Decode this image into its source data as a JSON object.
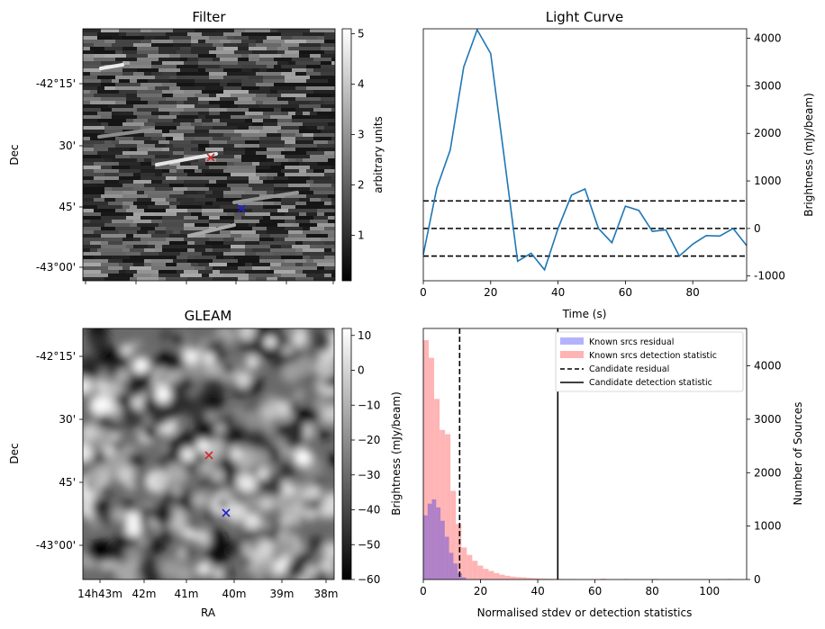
{
  "chart_data": [
    {
      "type": "heatmap",
      "title": "Filter",
      "xlabel": "",
      "ylabel": "Dec",
      "y_ticks": [
        "-42°15'",
        "30'",
        "45'",
        "-43°00'"
      ],
      "colorbar": {
        "label": "arbitrary units",
        "range": [
          0.1,
          5.1
        ],
        "ticks": [
          "1",
          "2",
          "3",
          "4",
          "5"
        ]
      },
      "markers": [
        {
          "label": "candidate",
          "color": "#d62728"
        },
        {
          "label": "reference",
          "color": "#1f1fd6"
        }
      ]
    },
    {
      "type": "line",
      "title": "Light Curve",
      "xlabel": "Time (s)",
      "ylabel": "Brightness (mJy/beam)",
      "xlim": [
        0,
        96
      ],
      "ylim": [
        -1100,
        4200
      ],
      "x_ticks": [
        "0",
        "20",
        "40",
        "60",
        "80"
      ],
      "y_ticks": [
        "-1000",
        "0",
        "1000",
        "2000",
        "3000",
        "4000"
      ],
      "x": [
        0,
        4,
        8,
        12,
        16,
        20,
        24,
        28,
        32,
        36,
        40,
        44,
        48,
        52,
        56,
        60,
        64,
        68,
        72,
        76,
        80,
        84,
        88,
        92,
        96
      ],
      "series": [
        {
          "name": "light curve",
          "color": "#1f77b4",
          "values": [
            -550,
            850,
            1650,
            3400,
            4180,
            3680,
            1500,
            -690,
            -520,
            -870,
            0,
            700,
            830,
            0,
            -300,
            470,
            380,
            -60,
            -30,
            -580,
            -330,
            -150,
            -160,
            0,
            -360
          ]
        }
      ],
      "hlines": [
        580,
        0,
        -580
      ]
    },
    {
      "type": "heatmap",
      "title": "GLEAM",
      "xlabel": "RA",
      "ylabel": "Dec",
      "x_ticks": [
        "14h43m",
        "42m",
        "41m",
        "40m",
        "39m",
        "38m"
      ],
      "y_ticks": [
        "-42°15'",
        "30'",
        "45'",
        "-43°00'"
      ],
      "colorbar": {
        "label": "Brightness (mJy/beam)",
        "range": [
          -60,
          12
        ],
        "ticks": [
          "10",
          "0",
          "−10",
          "−20",
          "−30",
          "−40",
          "−50",
          "−60"
        ]
      },
      "markers": [
        {
          "label": "candidate",
          "color": "#d62728"
        },
        {
          "label": "reference",
          "color": "#1f1fd6"
        }
      ]
    },
    {
      "type": "bar",
      "title": "",
      "xlabel": "Normalised stdev or detection statistics",
      "ylabel": "Number of Sources",
      "xlim": [
        0,
        113
      ],
      "ylim": [
        0,
        4700
      ],
      "x_ticks": [
        "0",
        "20",
        "40",
        "60",
        "80",
        "100"
      ],
      "y_ticks": [
        "0",
        "1000",
        "2000",
        "3000",
        "4000"
      ],
      "series": [
        {
          "name": "Known srcs residual",
          "color": "#b3b3fd",
          "bin_width": 1.5,
          "bins": [
            0,
            1.5,
            3,
            4.5,
            6,
            7.5,
            9,
            10.5,
            12,
            13.5
          ],
          "values": [
            1200,
            1420,
            1500,
            1350,
            1100,
            800,
            500,
            300,
            120,
            40
          ]
        },
        {
          "name": "Known srcs detection statistic",
          "color": "#ffb3b3",
          "bin_width": 1.9,
          "bins": [
            0,
            1.9,
            3.8,
            5.7,
            7.6,
            9.5,
            11.4,
            13.3,
            15.2,
            17.1,
            19,
            20.9,
            22.8,
            24.7,
            26.6,
            28.5,
            30.4,
            32.3,
            34.2,
            36.1,
            38,
            39.9,
            41.8,
            43.7,
            45.6,
            47.5,
            49.4,
            51.3,
            53.2,
            55.1
          ],
          "values": [
            4480,
            4150,
            3380,
            2800,
            2720,
            1660,
            1040,
            600,
            460,
            350,
            260,
            200,
            160,
            120,
            90,
            70,
            55,
            45,
            40,
            30,
            25,
            20,
            18,
            15,
            12,
            10,
            8,
            8,
            6,
            5
          ]
        }
      ],
      "vlines": [
        {
          "name": "Candidate residual",
          "x": 12.7,
          "style": "dashed"
        },
        {
          "name": "Candidate detection statistic",
          "x": 47,
          "style": "solid"
        }
      ],
      "legend": {
        "placement": "top-right",
        "entries": [
          "Known srcs residual",
          "Known srcs detection statistic",
          "Candidate residual",
          "Candidate detection statistic"
        ]
      }
    }
  ]
}
